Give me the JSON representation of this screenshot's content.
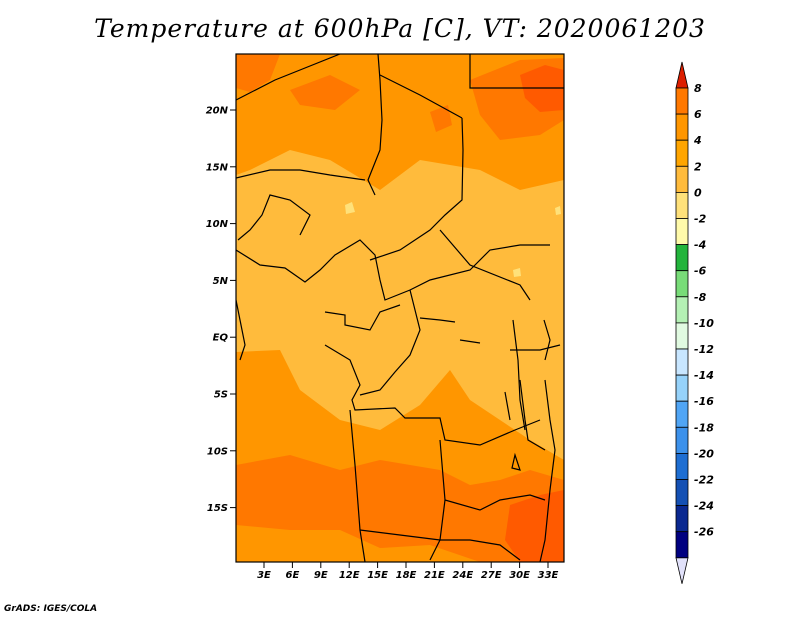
{
  "title": "Temperature at 600hPa [C], VT: 2020061203",
  "credit": "GrADS: IGES/COLA",
  "lat_ticks": [
    "20N",
    "15N",
    "10N",
    "5N",
    "EQ",
    "5S",
    "10S",
    "15S"
  ],
  "lon_ticks": [
    "3E",
    "6E",
    "9E",
    "12E",
    "15E",
    "18E",
    "21E",
    "24E",
    "27E",
    "30E",
    "33E"
  ],
  "colorbar": {
    "labels": [
      "8",
      "6",
      "4",
      "2",
      "0",
      "-2",
      "-4",
      "-6",
      "-8",
      "-10",
      "-12",
      "-14",
      "-16",
      "-18",
      "-20",
      "-22",
      "-24",
      "-26"
    ],
    "colors": [
      "#ff5a00",
      "#ff7800",
      "#ff9600",
      "#ffa500",
      "#ffbb3c",
      "#ffe17a",
      "#fffaaa",
      "#23b43c",
      "#78dc78",
      "#b4f0b4",
      "#e1fae1",
      "#c8e6ff",
      "#96d2fa",
      "#50a5f5",
      "#3c91eb",
      "#1e6ed2",
      "#1450b4",
      "#0a2890",
      "#000080"
    ],
    "top_color": "#dc1e00",
    "bottom_color": "#e1e1fa"
  },
  "map": {
    "base_color": "#ffbb3c",
    "warm_color": "#ff9600",
    "hot_color": "#ff7800",
    "hottest_color": "#ff5a00",
    "cool_color": "#ffe17a"
  }
}
